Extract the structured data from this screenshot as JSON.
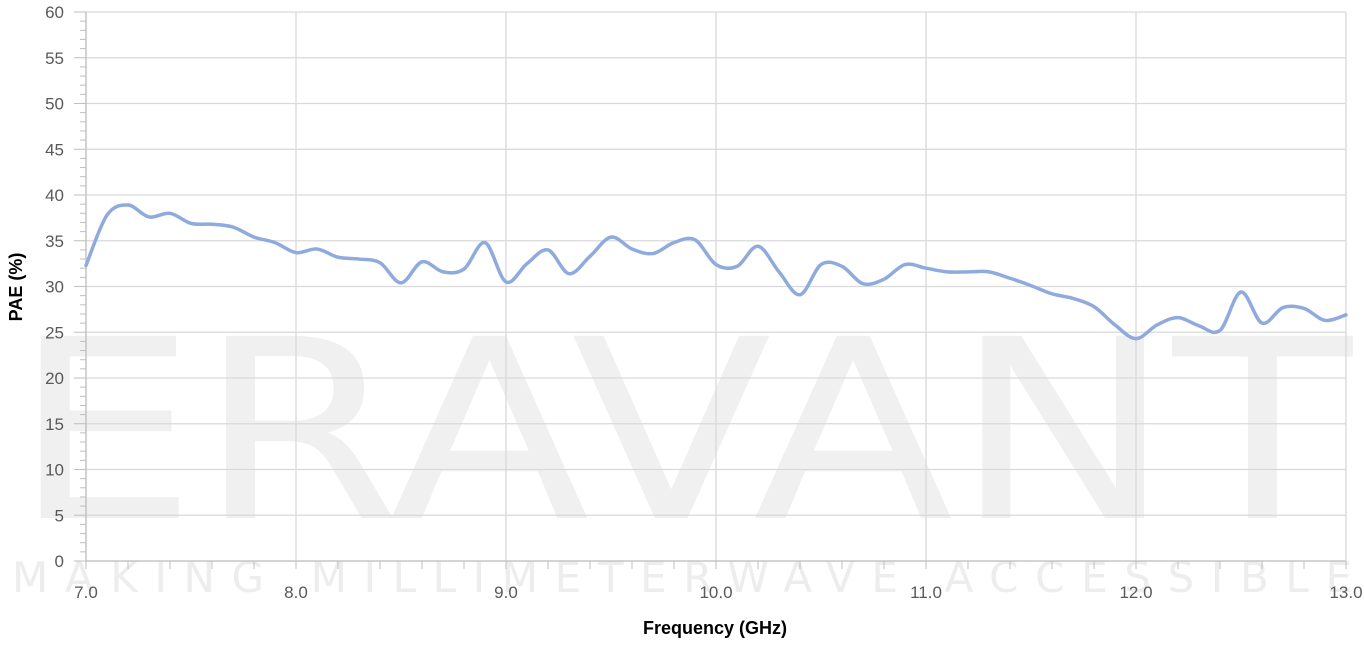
{
  "chart_data": {
    "type": "line",
    "xlabel": "Frequency (GHz)",
    "ylabel": "PAE (%)",
    "xlim": [
      7.0,
      13.0
    ],
    "ylim": [
      0,
      60
    ],
    "x_ticks": [
      "7.0",
      "8.0",
      "9.0",
      "10.0",
      "11.0",
      "12.0",
      "13.0"
    ],
    "y_ticks": [
      "0",
      "5",
      "10",
      "15",
      "20",
      "25",
      "30",
      "35",
      "40",
      "45",
      "50",
      "55",
      "60"
    ],
    "grid": true,
    "line_color": "#8faadc",
    "series": [
      {
        "x": [
          7.0,
          7.1,
          7.2,
          7.3,
          7.4,
          7.5,
          7.6,
          7.7,
          7.8,
          7.9,
          8.0,
          8.1,
          8.2,
          8.3,
          8.4,
          8.5,
          8.6,
          8.7,
          8.8,
          8.9,
          9.0,
          9.1,
          9.2,
          9.3,
          9.4,
          9.5,
          9.6,
          9.7,
          9.8,
          9.9,
          10.0,
          10.1,
          10.2,
          10.3,
          10.4,
          10.5,
          10.6,
          10.7,
          10.8,
          10.9,
          11.0,
          11.1,
          11.2,
          11.3,
          11.4,
          11.5,
          11.6,
          11.7,
          11.8,
          11.9,
          12.0,
          12.1,
          12.2,
          12.3,
          12.4,
          12.5,
          12.6,
          12.7,
          12.8,
          12.9,
          13.0
        ],
        "y": [
          32.3,
          37.8,
          38.9,
          37.6,
          38.0,
          36.9,
          36.8,
          36.5,
          35.4,
          34.8,
          33.7,
          34.1,
          33.2,
          33.0,
          32.6,
          30.4,
          32.7,
          31.6,
          31.9,
          34.8,
          30.5,
          32.5,
          34.0,
          31.4,
          33.3,
          35.4,
          34.1,
          33.6,
          34.8,
          35.1,
          32.4,
          32.2,
          34.4,
          31.6,
          29.1,
          32.4,
          32.2,
          30.3,
          30.8,
          32.4,
          32.0,
          31.6,
          31.6,
          31.6,
          30.9,
          30.1,
          29.2,
          28.7,
          27.8,
          25.8,
          24.3,
          25.8,
          26.6,
          25.7,
          25.2,
          29.4,
          26.0,
          27.7,
          27.6,
          26.3,
          26.9
        ]
      }
    ]
  },
  "watermark": {
    "brand": "ERAVANT",
    "tagline": "MAKING MILLIMETERWAVE ACCESSIBLE"
  }
}
